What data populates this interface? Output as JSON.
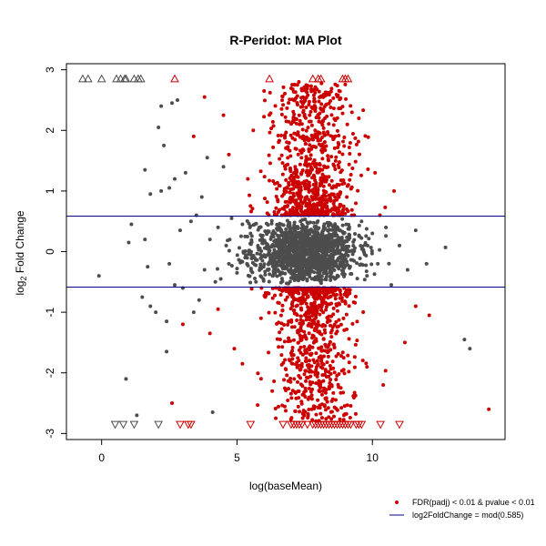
{
  "colors": {
    "background": "#ffffff",
    "frame": "#000000",
    "significant": "#cc0000",
    "non_significant": "#4d4d4d",
    "threshold_line": "#00008b"
  },
  "chart_data": {
    "type": "scatter",
    "title": "R-Peridot: MA Plot",
    "xlabel": "log(baseMean)",
    "ylabel_main": "log",
    "ylabel_sub": "2",
    "ylabel_rest": " Fold Change",
    "xlim": [
      -1.3,
      14.9
    ],
    "ylim": [
      -3.1,
      3.1
    ],
    "x_ticks": [
      0,
      5,
      10
    ],
    "y_ticks": [
      -3,
      -2,
      -1,
      0,
      1,
      2,
      3
    ],
    "threshold": 0.585,
    "clip_value": 2.85,
    "legend": {
      "position": "bottom-right",
      "entries": [
        {
          "label": "FDR(padj) < 0.01 & pvalue < 0.01",
          "symbol": "point",
          "color": "#cc0000"
        },
        {
          "label": "log2FoldChange = mod(0.585)",
          "symbol": "line",
          "color": "#00008b"
        }
      ]
    },
    "series": [
      {
        "role": "non-significant",
        "color": "#4d4d4d",
        "points": [
          [
            -0.1,
            -0.4
          ],
          [
            0.9,
            -2.1
          ],
          [
            1.0,
            0.15
          ],
          [
            1.1,
            0.45
          ],
          [
            1.3,
            -2.7
          ],
          [
            1.5,
            -0.75
          ],
          [
            1.6,
            1.35
          ],
          [
            1.6,
            0.2
          ],
          [
            1.7,
            -0.25
          ],
          [
            1.8,
            -0.9
          ],
          [
            1.8,
            0.95
          ],
          [
            2.0,
            -1.0
          ],
          [
            2.1,
            2.05
          ],
          [
            2.2,
            2.4
          ],
          [
            2.2,
            1.0
          ],
          [
            2.3,
            1.75
          ],
          [
            2.4,
            -1.15
          ],
          [
            2.4,
            -1.65
          ],
          [
            2.5,
            1.05
          ],
          [
            2.5,
            -0.2
          ],
          [
            2.6,
            2.45
          ],
          [
            2.7,
            1.2
          ],
          [
            2.7,
            -0.55
          ],
          [
            2.8,
            2.5
          ],
          [
            2.9,
            0.35
          ],
          [
            3.0,
            -0.6
          ],
          [
            3.1,
            1.3
          ],
          [
            3.3,
            0.5
          ],
          [
            3.4,
            -1.0
          ],
          [
            3.5,
            0.6
          ],
          [
            3.6,
            -0.8
          ],
          [
            3.7,
            0.9
          ],
          [
            3.8,
            -0.3
          ],
          [
            3.9,
            1.55
          ],
          [
            4.0,
            0.2
          ],
          [
            4.1,
            -2.65
          ],
          [
            4.2,
            -0.5
          ],
          [
            4.3,
            0.4
          ],
          [
            4.4,
            -0.45
          ],
          [
            4.5,
            1.4
          ],
          [
            4.6,
            0.1
          ],
          [
            4.7,
            -0.2
          ],
          [
            4.8,
            0.55
          ],
          [
            5.0,
            -0.35
          ],
          [
            5.2,
            0.45
          ],
          [
            5.3,
            -0.1
          ],
          [
            5.5,
            0.3
          ],
          [
            5.7,
            -0.5
          ],
          [
            9.6,
            0.5
          ],
          [
            9.8,
            -0.4
          ],
          [
            10.0,
            0.3
          ],
          [
            10.2,
            -0.2
          ],
          [
            10.5,
            0.4
          ],
          [
            10.7,
            -0.55
          ],
          [
            11.0,
            0.1
          ],
          [
            11.3,
            -0.3
          ],
          [
            11.6,
            0.35
          ],
          [
            12.0,
            -0.2
          ],
          [
            12.7,
            0.07
          ],
          [
            13.4,
            -1.45
          ],
          [
            13.6,
            -1.6
          ]
        ],
        "dense_region": {
          "x_range": [
            5.5,
            9.5
          ],
          "y_range": [
            -0.58,
            0.58
          ],
          "count": 1400
        },
        "clipped_up": [
          -0.7,
          -0.5,
          0.0,
          0.55,
          0.7,
          0.85,
          0.9,
          1.2,
          1.35,
          1.45
        ],
        "clipped_down": [
          0.5,
          0.8,
          1.2,
          2.1
        ]
      },
      {
        "role": "significant",
        "color": "#cc0000",
        "points": [
          [
            2.6,
            -2.5
          ],
          [
            3.0,
            -1.2
          ],
          [
            3.4,
            1.9
          ],
          [
            3.8,
            2.55
          ],
          [
            4.0,
            -1.35
          ],
          [
            4.3,
            -0.95
          ],
          [
            4.5,
            2.25
          ],
          [
            4.7,
            1.6
          ],
          [
            4.9,
            -1.6
          ],
          [
            5.2,
            -1.85
          ],
          [
            5.4,
            1.2
          ],
          [
            5.6,
            2.0
          ],
          [
            6.0,
            2.65
          ],
          [
            6.3,
            -2.3
          ],
          [
            9.5,
            2.2
          ],
          [
            9.8,
            -1.9
          ],
          [
            10.1,
            1.3
          ],
          [
            10.4,
            -2.2
          ],
          [
            10.8,
            1.0
          ],
          [
            11.2,
            -1.5
          ],
          [
            11.6,
            -0.9
          ],
          [
            12.1,
            -1.05
          ],
          [
            14.3,
            -2.6
          ]
        ],
        "dense_region": {
          "center_x": 7.8,
          "spread_x": 0.75,
          "magnitude_range": [
            0.6,
            2.8
          ],
          "count": 1500
        },
        "clipped_up": [
          2.7,
          6.2,
          7.8,
          8.0,
          8.1,
          8.9,
          9.0,
          9.1
        ],
        "clipped_down": [
          2.9,
          3.2,
          3.3,
          5.5,
          6.7,
          7.0,
          7.1,
          7.2,
          7.3,
          7.4,
          7.6,
          7.8,
          7.9,
          8.0,
          8.1,
          8.2,
          8.3,
          8.4,
          8.5,
          8.6,
          8.7,
          8.8,
          8.9,
          9.0,
          9.1,
          9.2,
          9.4,
          9.5,
          9.6,
          10.3,
          11.0
        ]
      }
    ]
  }
}
